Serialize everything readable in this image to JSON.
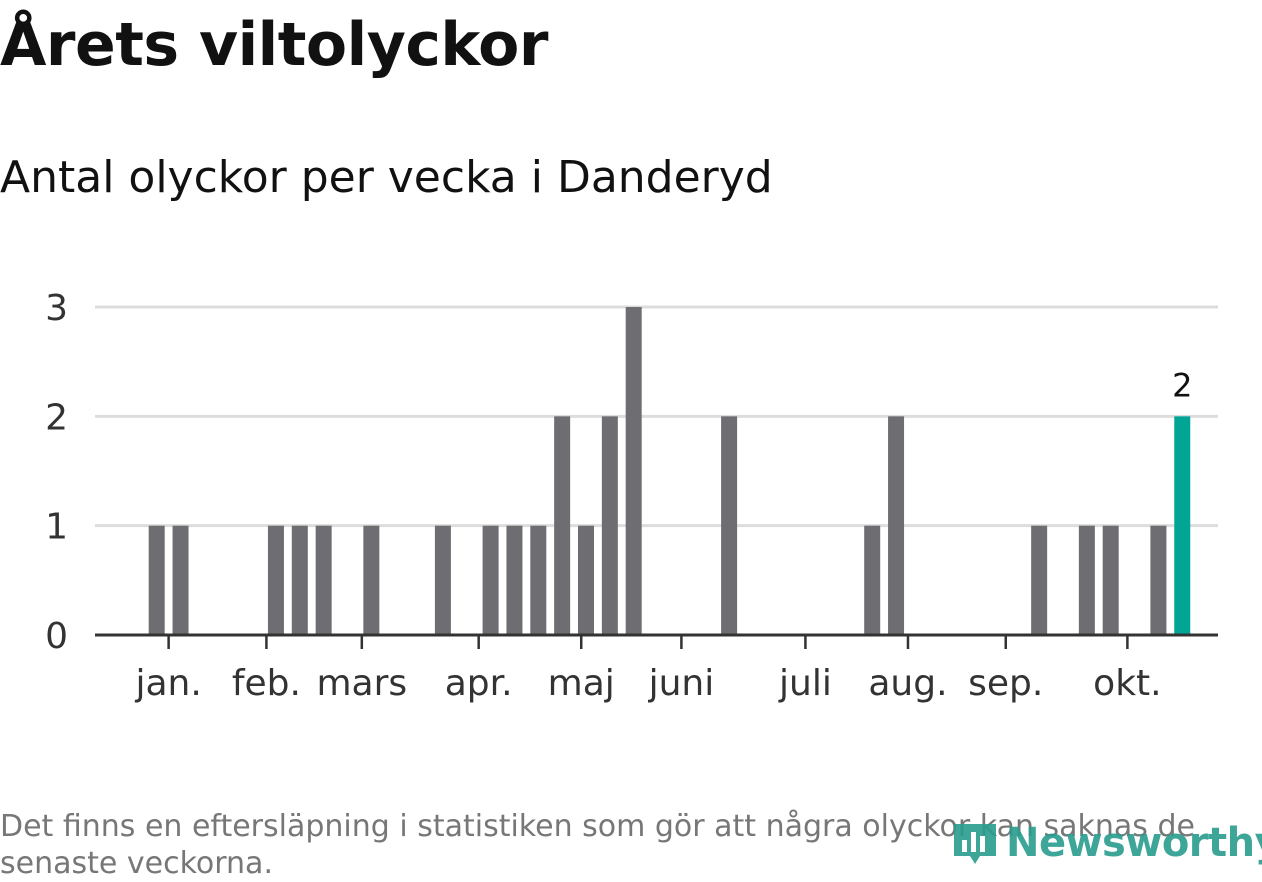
{
  "title": "Årets viltolyckor",
  "subtitle": "Antal olyckor per vecka i Danderyd",
  "footnote": "Det finns en eftersläpning i statistiken som gör att några olyckor kan saknas de senaste veckorna.",
  "brand": "Newsworthy",
  "colors": {
    "bar": "#6e6d72",
    "highlight": "#00a595",
    "grid": "#dddddd",
    "axis": "#333333",
    "text": "#333333"
  },
  "chart_data": {
    "type": "bar",
    "title": "Antal olyckor per vecka i Danderyd",
    "xlabel": "",
    "ylabel": "",
    "ylim": [
      0,
      3
    ],
    "yticks": [
      0,
      1,
      2,
      3
    ],
    "grid": true,
    "x_unit": "week",
    "weeks": [
      1,
      2,
      3,
      4,
      5,
      6,
      7,
      8,
      9,
      10,
      11,
      12,
      13,
      14,
      15,
      16,
      17,
      18,
      19,
      20,
      21,
      22,
      23,
      24,
      25,
      26,
      27,
      28,
      29,
      30,
      31,
      32,
      33,
      34,
      35,
      36,
      37,
      38,
      39,
      40,
      41,
      42,
      43,
      44,
      45
    ],
    "values": [
      0,
      0,
      1,
      1,
      0,
      0,
      0,
      1,
      1,
      1,
      0,
      1,
      0,
      0,
      1,
      0,
      1,
      1,
      1,
      2,
      1,
      2,
      3,
      0,
      0,
      0,
      2,
      0,
      0,
      0,
      0,
      0,
      1,
      2,
      0,
      0,
      0,
      0,
      0,
      1,
      0,
      1,
      1,
      0,
      1
    ],
    "last_week": 46,
    "last_value": 2,
    "last_label": "2",
    "month_ticks": [
      {
        "label": "jan.",
        "week": 3.5
      },
      {
        "label": "feb.",
        "week": 7.6
      },
      {
        "label": "mars",
        "week": 11.6
      },
      {
        "label": "apr.",
        "week": 16.5
      },
      {
        "label": "maj",
        "week": 20.8
      },
      {
        "label": "juni",
        "week": 25.0
      },
      {
        "label": "juli",
        "week": 30.2
      },
      {
        "label": "aug.",
        "week": 34.5
      },
      {
        "label": "sep.",
        "week": 38.6
      },
      {
        "label": "okt.",
        "week": 43.7
      }
    ]
  }
}
